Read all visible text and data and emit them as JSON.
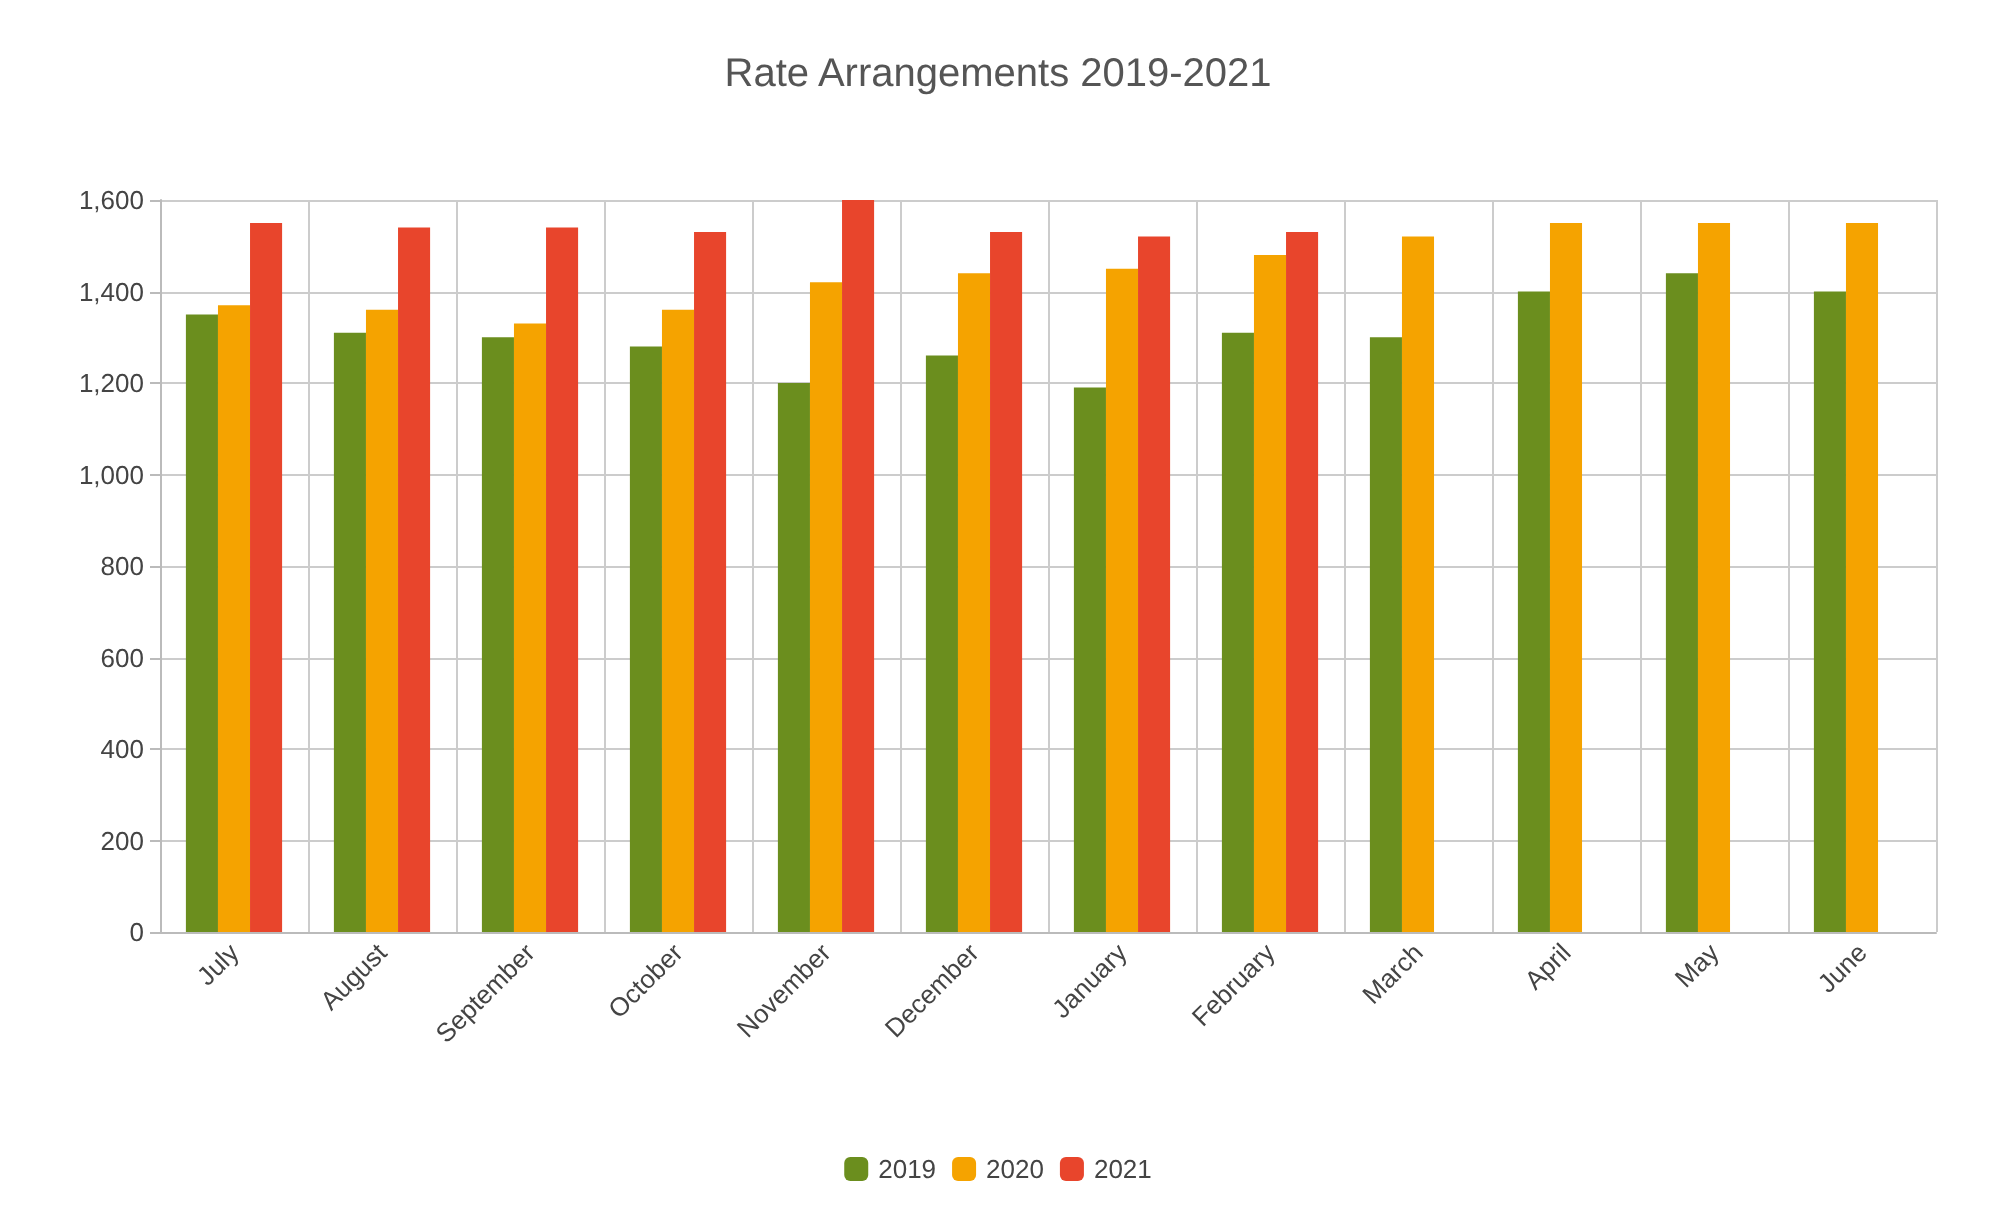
{
  "chart_data": {
    "type": "bar",
    "title": "Rate Arrangements 2019-2021",
    "categories": [
      "July",
      "August",
      "September",
      "October",
      "November",
      "December",
      "January",
      "February",
      "March",
      "April",
      "May",
      "June"
    ],
    "series": [
      {
        "name": "2019",
        "color": "#6b8e1e",
        "values": [
          1350,
          1310,
          1300,
          1280,
          1200,
          1260,
          1190,
          1310,
          1300,
          1400,
          1440,
          1400
        ]
      },
      {
        "name": "2020",
        "color": "#f5a300",
        "values": [
          1370,
          1360,
          1330,
          1360,
          1420,
          1440,
          1450,
          1480,
          1520,
          1550,
          1550,
          1550
        ]
      },
      {
        "name": "2021",
        "color": "#e8452c",
        "values": [
          1550,
          1540,
          1540,
          1530,
          1600,
          1530,
          1520,
          1530,
          null,
          null,
          null,
          null
        ]
      }
    ],
    "ylim": [
      0,
      1600
    ],
    "yticks": [
      0,
      200,
      400,
      600,
      800,
      {
        "value": 1000,
        "label": "1,000"
      },
      {
        "value": 1200,
        "label": "1,200"
      },
      {
        "value": 1400,
        "label": "1,400"
      },
      {
        "value": 1600,
        "label": "1,600"
      }
    ],
    "grid": true,
    "legend": "bottom"
  }
}
